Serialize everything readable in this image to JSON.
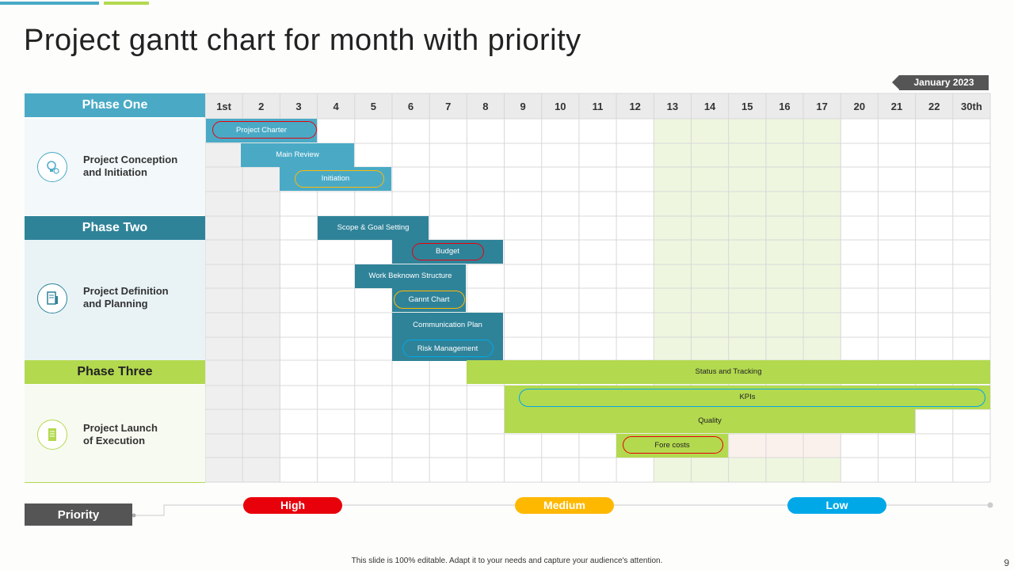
{
  "title": "Project gantt chart for month with priority",
  "month": "January  2023",
  "days": [
    "1st",
    "2",
    "3",
    "4",
    "5",
    "6",
    "7",
    "8",
    "9",
    "10",
    "11",
    "12",
    "13",
    "14",
    "15",
    "16",
    "17",
    "20",
    "21",
    "22",
    "30th"
  ],
  "phases": [
    {
      "name": "Phase One",
      "description_line1": "Project Conception",
      "description_line2": "and Initiation",
      "icon": "idea-gear-icon",
      "color": "#4aaac6"
    },
    {
      "name": "Phase Two",
      "description_line1": "Project Definition",
      "description_line2": "and Planning",
      "icon": "planning-document-icon",
      "color": "#2f8399"
    },
    {
      "name": "Phase Three",
      "description_line1": "Project Launch",
      "description_line2": "of Execution",
      "icon": "launch-document-icon",
      "color": "#b3d94f"
    }
  ],
  "tasks": {
    "project_charter": "Project Charter",
    "main_review": "Main Review",
    "initiation": "Initiation",
    "scope_goal": "Scope & Goal Setting",
    "budget": "Budget",
    "wbs": "Work Beknown Structure",
    "gannt": "Gannt Chart",
    "comm_plan": "Communication Plan",
    "risk": "Risk Management",
    "status": "Status and  Tracking",
    "kpis": "KPIs",
    "quality": "Quality",
    "forecosts": "Fore costs"
  },
  "priority": {
    "label": "Priority",
    "high": "High",
    "medium": "Medium",
    "low": "Low",
    "colors": {
      "high": "#e8000b",
      "medium": "#ffb800",
      "low": "#00a8e8"
    }
  },
  "footer": "This slide is 100% editable.  Adapt it to your needs and capture your audience's attention.",
  "page_number": "9"
}
